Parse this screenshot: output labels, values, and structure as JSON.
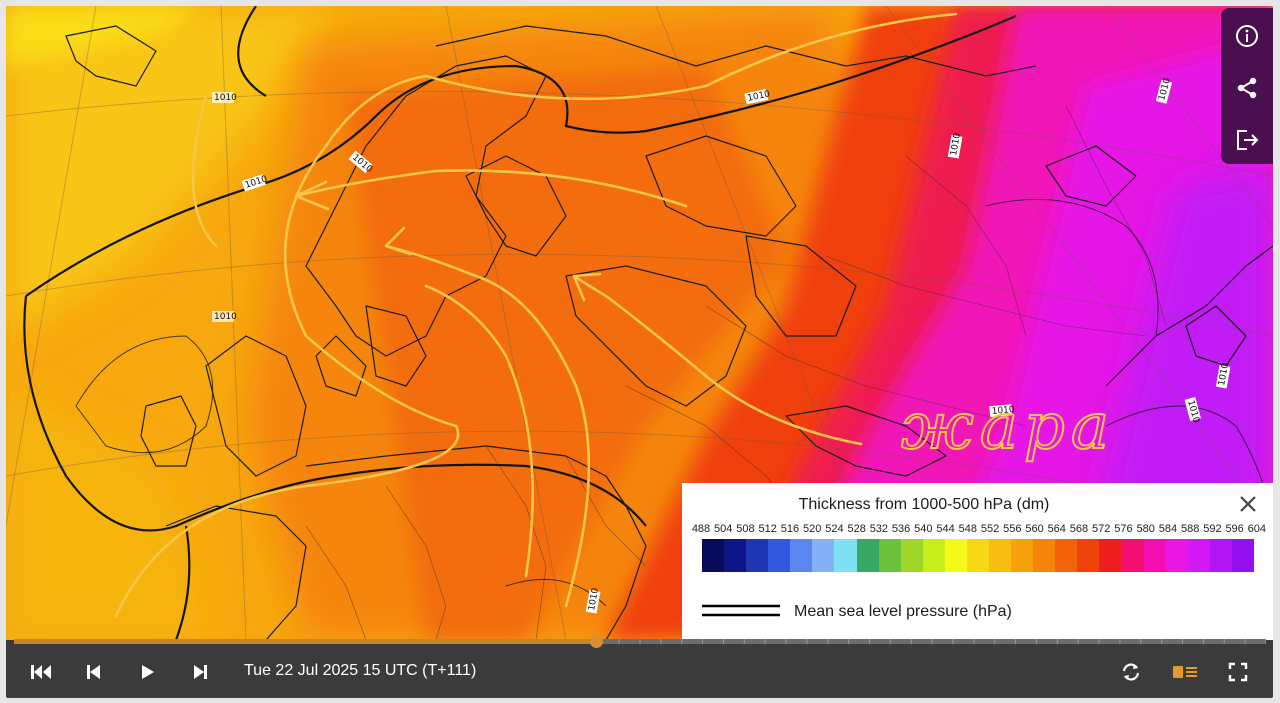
{
  "map": {
    "isobar_labels": [
      "1010",
      "1010",
      "1010",
      "1010",
      "1010",
      "1010",
      "1010",
      "1010",
      "1010",
      "1010",
      "1010"
    ],
    "annotation_text": "жара"
  },
  "legend": {
    "title": "Thickness from 1000-500 hPa (dm)",
    "ticks": [
      "488",
      "504",
      "508",
      "512",
      "516",
      "520",
      "524",
      "528",
      "532",
      "536",
      "540",
      "544",
      "548",
      "552",
      "556",
      "560",
      "564",
      "568",
      "572",
      "576",
      "580",
      "584",
      "588",
      "592",
      "596",
      "604"
    ],
    "colors": [
      "#0a0a5c",
      "#0d1589",
      "#2037b5",
      "#3358e0",
      "#5a86f0",
      "#86b0f7",
      "#7fe2f4",
      "#3aa865",
      "#6cc23a",
      "#9fd62a",
      "#c8ef1c",
      "#f4f91a",
      "#f6d814",
      "#f7bd10",
      "#f7a20d",
      "#f4840b",
      "#f26309",
      "#ef4209",
      "#ee1e1e",
      "#f40f73",
      "#f50fb3",
      "#ea16e3",
      "#d41af4",
      "#b515f6",
      "#9510ef"
    ],
    "mslp_label": "Mean sea level pressure (hPa)"
  },
  "controls": {
    "timestamp": "Tue 22 Jul 2025 15 UTC (T+111)",
    "progress": 0.465
  },
  "colors": {
    "accent": "#d8902f",
    "panel": "#4a0f4e",
    "bar": "#3b3b3b",
    "drawing": "#f6c64a"
  }
}
